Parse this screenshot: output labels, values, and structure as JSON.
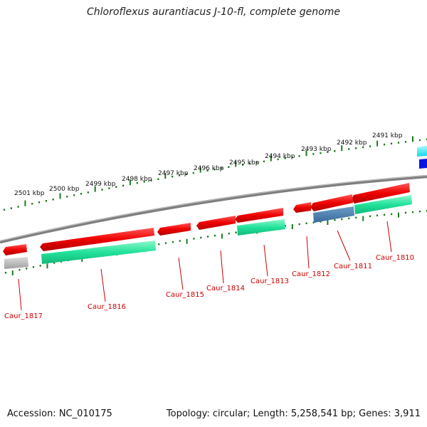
{
  "title": "Chloroflexus aurantiacus J-10-fl, complete genome",
  "footer": {
    "accession": "Accession: NC_010175",
    "summary": "Topology: circular; Length: 5,258,541 bp; Genes: 3,911"
  },
  "kbp_labels": [
    "2501 kbp",
    "2500 kbp",
    "2499 kbp",
    "2498 kbp",
    "2497 kbp",
    "2496 kbp",
    "2495 kbp",
    "2494 kbp",
    "2493 kbp",
    "2492 kbp",
    "2491 kbp"
  ],
  "gene_labels": [
    "Caur_1817",
    "Caur_1816",
    "Caur_1815",
    "Caur_1814",
    "Caur_1813",
    "Caur_1812",
    "Caur_1811",
    "Caur_1810"
  ],
  "colors": {
    "cds": "#ee0000",
    "feature_green": "#22e29a",
    "feature_blue": "#4a7fb0",
    "feature_grey": "#b8b8b8",
    "tick": "#1a7a1a",
    "backbone": "#8a8a8a",
    "label": "#cc0000"
  }
}
